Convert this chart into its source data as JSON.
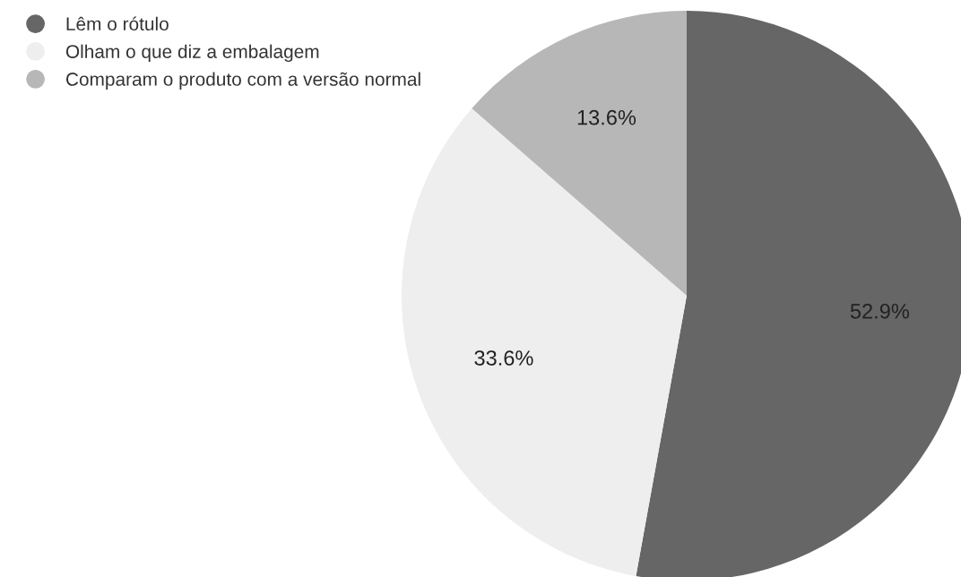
{
  "chart_data": {
    "type": "pie",
    "categories": [
      "Lêm o rótulo",
      "Olham o que diz a embalagem",
      "Comparam o produto com a versão normal"
    ],
    "values": [
      52.9,
      33.6,
      13.6
    ],
    "colors": [
      "#666666",
      "#eeeeee",
      "#b7b7b7"
    ],
    "value_labels": [
      "52.9%",
      "33.6%",
      "13.6%"
    ],
    "legend": "top left"
  }
}
